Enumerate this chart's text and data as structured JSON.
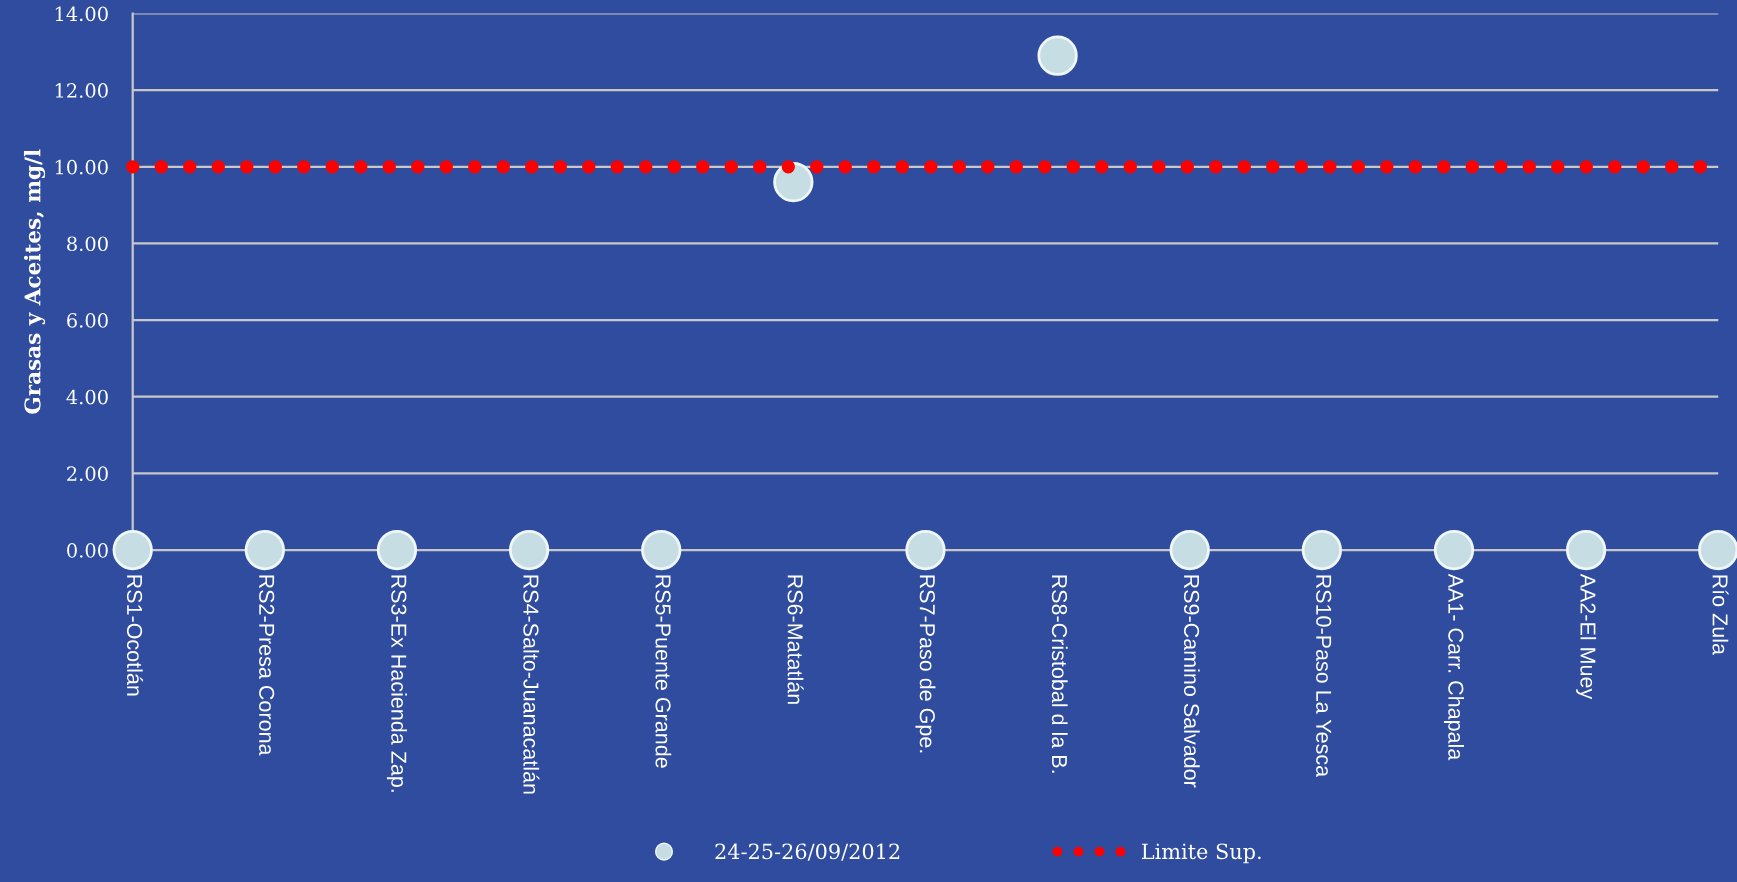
{
  "chart_data": {
    "type": "scatter",
    "categories": [
      "RS1-Ocotlán",
      "RS2-Presa Corona",
      "RS3-Ex Hacienda Zap.",
      "RS4-Salto-Juanacatlán",
      "RS5-Puente Grande",
      "RS6-Matatlán",
      "RS7-Paso de Gpe.",
      "RS8-Cristobal d la B.",
      "RS9-Camino Salvador",
      "RS10-Paso La Yesca",
      "AA1- Carr. Chapala",
      "AA2-El Muey",
      "Río Zula"
    ],
    "ylabel": "Grasas y Aceites, mg/l",
    "ylim": [
      0,
      14
    ],
    "yticks": [
      {
        "value": 0,
        "label": "0.00"
      },
      {
        "value": 2,
        "label": "2.00"
      },
      {
        "value": 4,
        "label": "4.00"
      },
      {
        "value": 6,
        "label": "6.00"
      },
      {
        "value": 8,
        "label": "8.00"
      },
      {
        "value": 10,
        "label": "10.00"
      },
      {
        "value": 12,
        "label": "12.00"
      },
      {
        "value": 14,
        "label": "14.00"
      }
    ],
    "grid": "y",
    "legend": "bottom",
    "series": [
      {
        "name": "24-25-26/09/2012",
        "marker": "circle",
        "color": "#c6dde4",
        "values": [
          0,
          0,
          0,
          0,
          0,
          9.6,
          0,
          12.9,
          0,
          0,
          0,
          0,
          0
        ]
      },
      {
        "name": "Limite Sup.",
        "type": "line",
        "marker": "none",
        "line_style": "dotted",
        "color": "#ff0000",
        "values": [
          10,
          10,
          10,
          10,
          10,
          10,
          10,
          10,
          10,
          10,
          10,
          10,
          10
        ]
      }
    ]
  }
}
